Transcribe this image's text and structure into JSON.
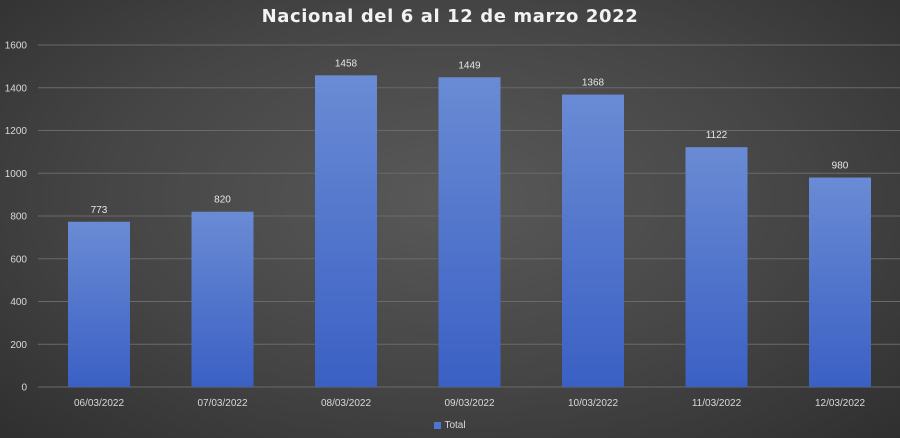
{
  "chart_data": {
    "type": "bar",
    "title": "Nacional del 6 al 12 de marzo 2022",
    "categories": [
      "06/03/2022",
      "07/03/2022",
      "08/03/2022",
      "09/03/2022",
      "10/03/2022",
      "11/03/2022",
      "12/03/2022"
    ],
    "series": [
      {
        "name": "Total",
        "values": [
          773,
          820,
          1458,
          1449,
          1368,
          1122,
          980
        ]
      }
    ],
    "yticks": [
      "0",
      "200",
      "400",
      "600",
      "800",
      "1000",
      "1200",
      "1400",
      "1600"
    ],
    "ylim": [
      0,
      1600
    ],
    "grid": true,
    "legend_position": "bottom",
    "data_labels": true,
    "colors": {
      "bar_top": "#6a8bd4",
      "bar_bottom": "#3a60c4",
      "legend": "#4f74d1"
    }
  }
}
